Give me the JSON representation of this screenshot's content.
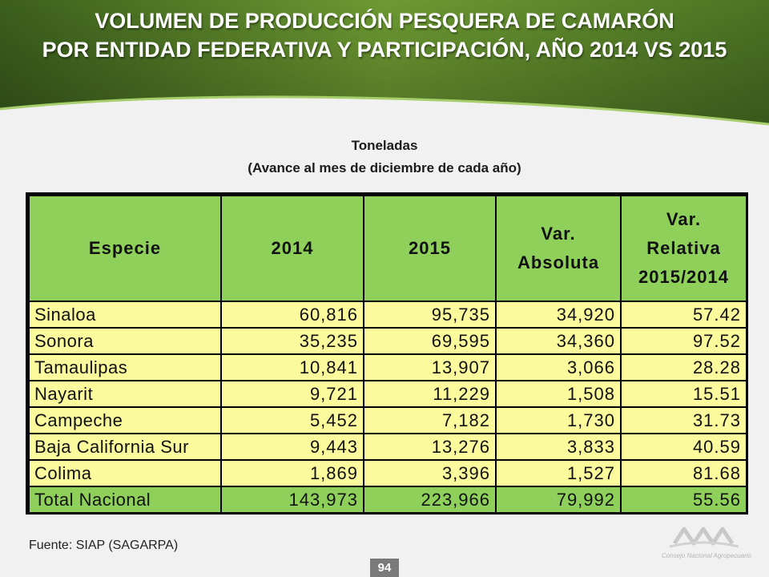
{
  "title": {
    "line1": "VOLUMEN DE PRODUCCIÓN PESQUERA  DE CAMARÓN",
    "line2": "POR ENTIDAD FEDERATIVA Y PARTICIPACIÓN, AÑO 2014 VS 2015"
  },
  "subtitle": {
    "line1": "Toneladas",
    "line2": "(Avance al mes de diciembre de cada año)"
  },
  "table": {
    "headers": [
      "Especie",
      "2014",
      "2015",
      "Var. Absoluta",
      "Var. Relativa 2015/2014"
    ],
    "header_lines": {
      "col4": [
        "Var.",
        "Absoluta"
      ],
      "col5": [
        "Var.",
        "Relativa",
        "2015/2014"
      ]
    },
    "rows": [
      [
        "Sinaloa",
        "60,816",
        "95,735",
        "34,920",
        "57.42"
      ],
      [
        "Sonora",
        "35,235",
        "69,595",
        "34,360",
        "97.52"
      ],
      [
        "Tamaulipas",
        "10,841",
        "13,907",
        "3,066",
        "28.28"
      ],
      [
        "Nayarit",
        "9,721",
        "11,229",
        "1,508",
        "15.51"
      ],
      [
        "Campeche",
        "5,452",
        "7,182",
        "1,730",
        "31.73"
      ],
      [
        "Baja California Sur",
        "9,443",
        "13,276",
        "3,833",
        "40.59"
      ],
      [
        "Colima",
        "1,869",
        "3,396",
        "1,527",
        "81.68"
      ]
    ],
    "total": [
      "Total Nacional",
      "143,973",
      "223,966",
      "79,992",
      "55.56"
    ]
  },
  "source": "Fuente: SIAP (SAGARPA)",
  "page_number": "94",
  "logo_text": "Consejo Nacional Agropecuario",
  "colors": {
    "header_green_dark": "#3f6a1e",
    "header_green_light": "#8fbf4a",
    "table_header_bg": "#8fd05a",
    "table_row_bg": "#fbfa9c"
  }
}
